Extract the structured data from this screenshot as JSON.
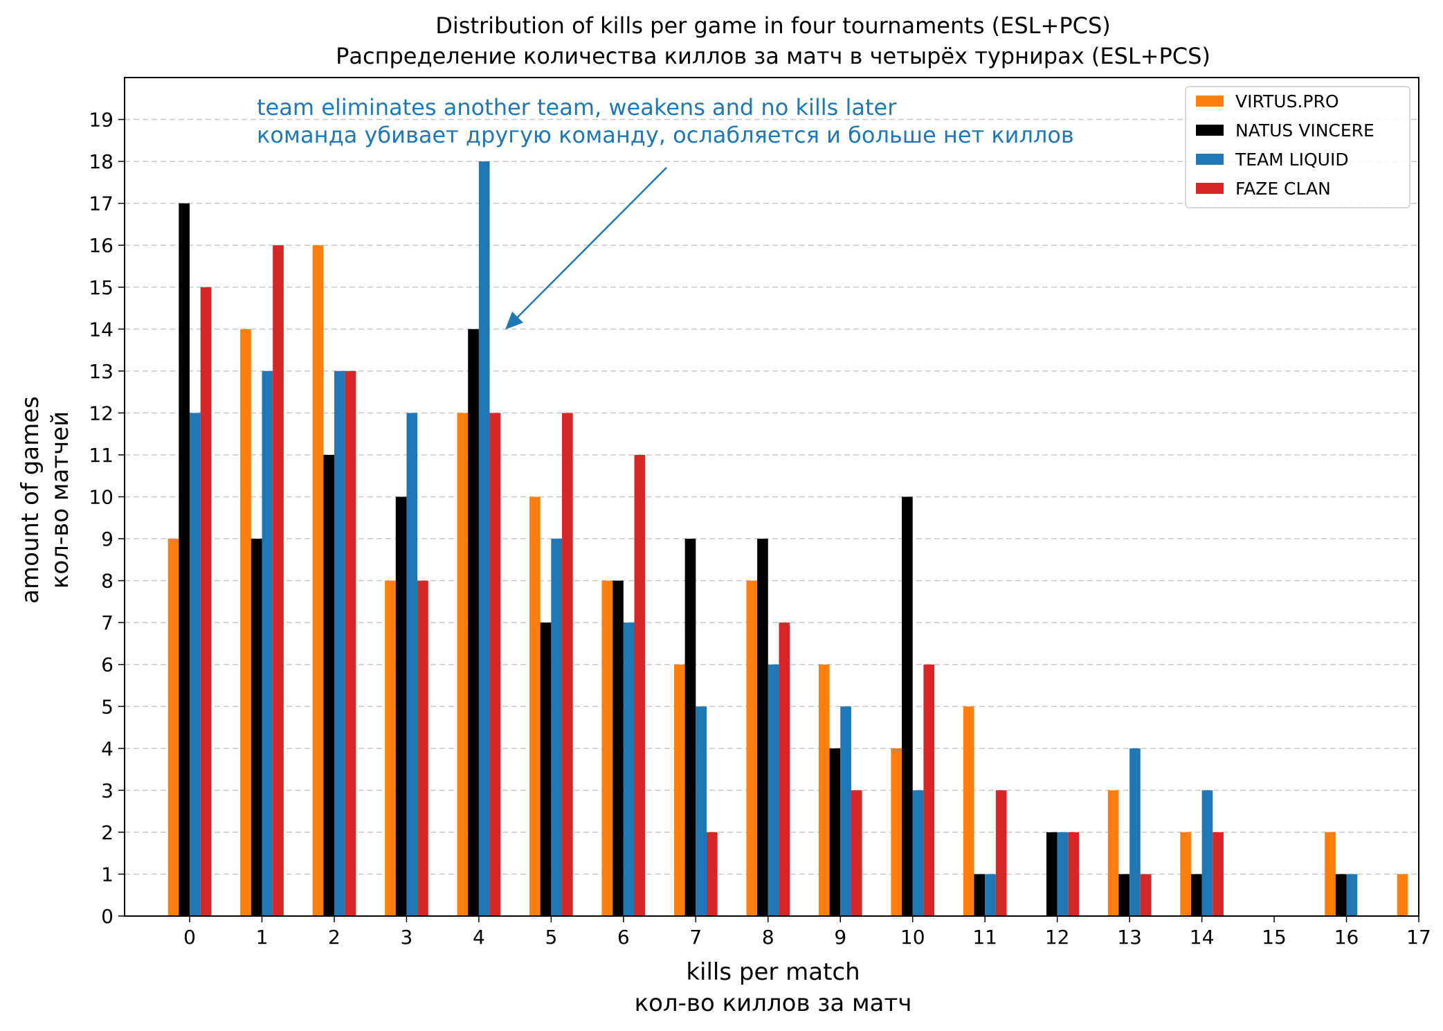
{
  "chart_data": {
    "type": "bar",
    "title_line1": "Distribution of kills per game in four tournaments (ESL+PCS)",
    "title_line2": "Распределение количества киллов за матч в четырёх турнирах (ESL+PCS)",
    "xlabel_line1": "kills per match",
    "xlabel_line2": "кол-во киллов за матч",
    "ylabel_line1": "amount of games",
    "ylabel_line2": "кол-во матчей",
    "categories": [
      0,
      1,
      2,
      3,
      4,
      5,
      6,
      7,
      8,
      9,
      10,
      11,
      12,
      13,
      14,
      15,
      16,
      17
    ],
    "xlim": [
      -0.9,
      17
    ],
    "ylim": [
      0,
      20
    ],
    "yticks": [
      0,
      1,
      2,
      3,
      4,
      5,
      6,
      7,
      8,
      9,
      10,
      11,
      12,
      13,
      14,
      15,
      16,
      17,
      18,
      19
    ],
    "grid": "horizontal dashed",
    "legend_position": "top-right",
    "series": [
      {
        "name": "VIRTUS.PRO",
        "color": "#ff7f0e",
        "values": [
          9,
          14,
          16,
          8,
          12,
          10,
          8,
          6,
          8,
          6,
          4,
          5,
          0,
          3,
          2,
          0,
          2,
          1
        ]
      },
      {
        "name": "NATUS VINCERE",
        "color": "#000000",
        "values": [
          17,
          9,
          11,
          10,
          14,
          7,
          8,
          9,
          9,
          4,
          10,
          1,
          2,
          1,
          1,
          0,
          1,
          0
        ]
      },
      {
        "name": "TEAM LIQUID",
        "color": "#1f77b4",
        "values": [
          12,
          13,
          13,
          12,
          18,
          9,
          7,
          5,
          6,
          5,
          3,
          1,
          2,
          4,
          3,
          0,
          1,
          0
        ]
      },
      {
        "name": "FAZE CLAN",
        "color": "#d62728",
        "values": [
          15,
          16,
          13,
          8,
          12,
          12,
          11,
          2,
          7,
          3,
          6,
          3,
          2,
          1,
          2,
          0,
          0,
          0
        ]
      }
    ],
    "annotation": {
      "line1": "team eliminates another team, weakens and no kills later",
      "line2": "команда убивает другую команду, ослабляется и больше нет киллов",
      "color": "#1f77b4",
      "points_to": {
        "x": 4,
        "y": 14
      }
    }
  }
}
